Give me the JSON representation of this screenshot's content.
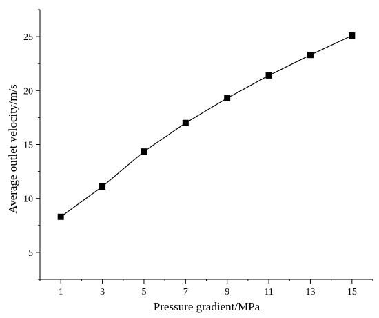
{
  "chart_data": {
    "type": "line",
    "title": "",
    "xlabel": "Pressure gradient/MPa",
    "ylabel": "Average outlet velocity/m/s",
    "x": [
      1,
      3,
      5,
      7,
      9,
      11,
      13,
      15
    ],
    "xticks": [
      1,
      3,
      5,
      7,
      9,
      11,
      13,
      15
    ],
    "xlim": [
      0,
      16
    ],
    "yticks": [
      5,
      10,
      15,
      20,
      25
    ],
    "ylim": [
      2.5,
      27.5
    ],
    "grid": false,
    "legend": "none",
    "marker": "square",
    "series": [
      {
        "values": [
          8.3,
          11.1,
          14.35,
          17.0,
          19.3,
          21.4,
          23.3,
          25.1
        ]
      }
    ],
    "colors": {
      "line": "#000000",
      "marker": "#000000",
      "axis": "#000000"
    }
  }
}
